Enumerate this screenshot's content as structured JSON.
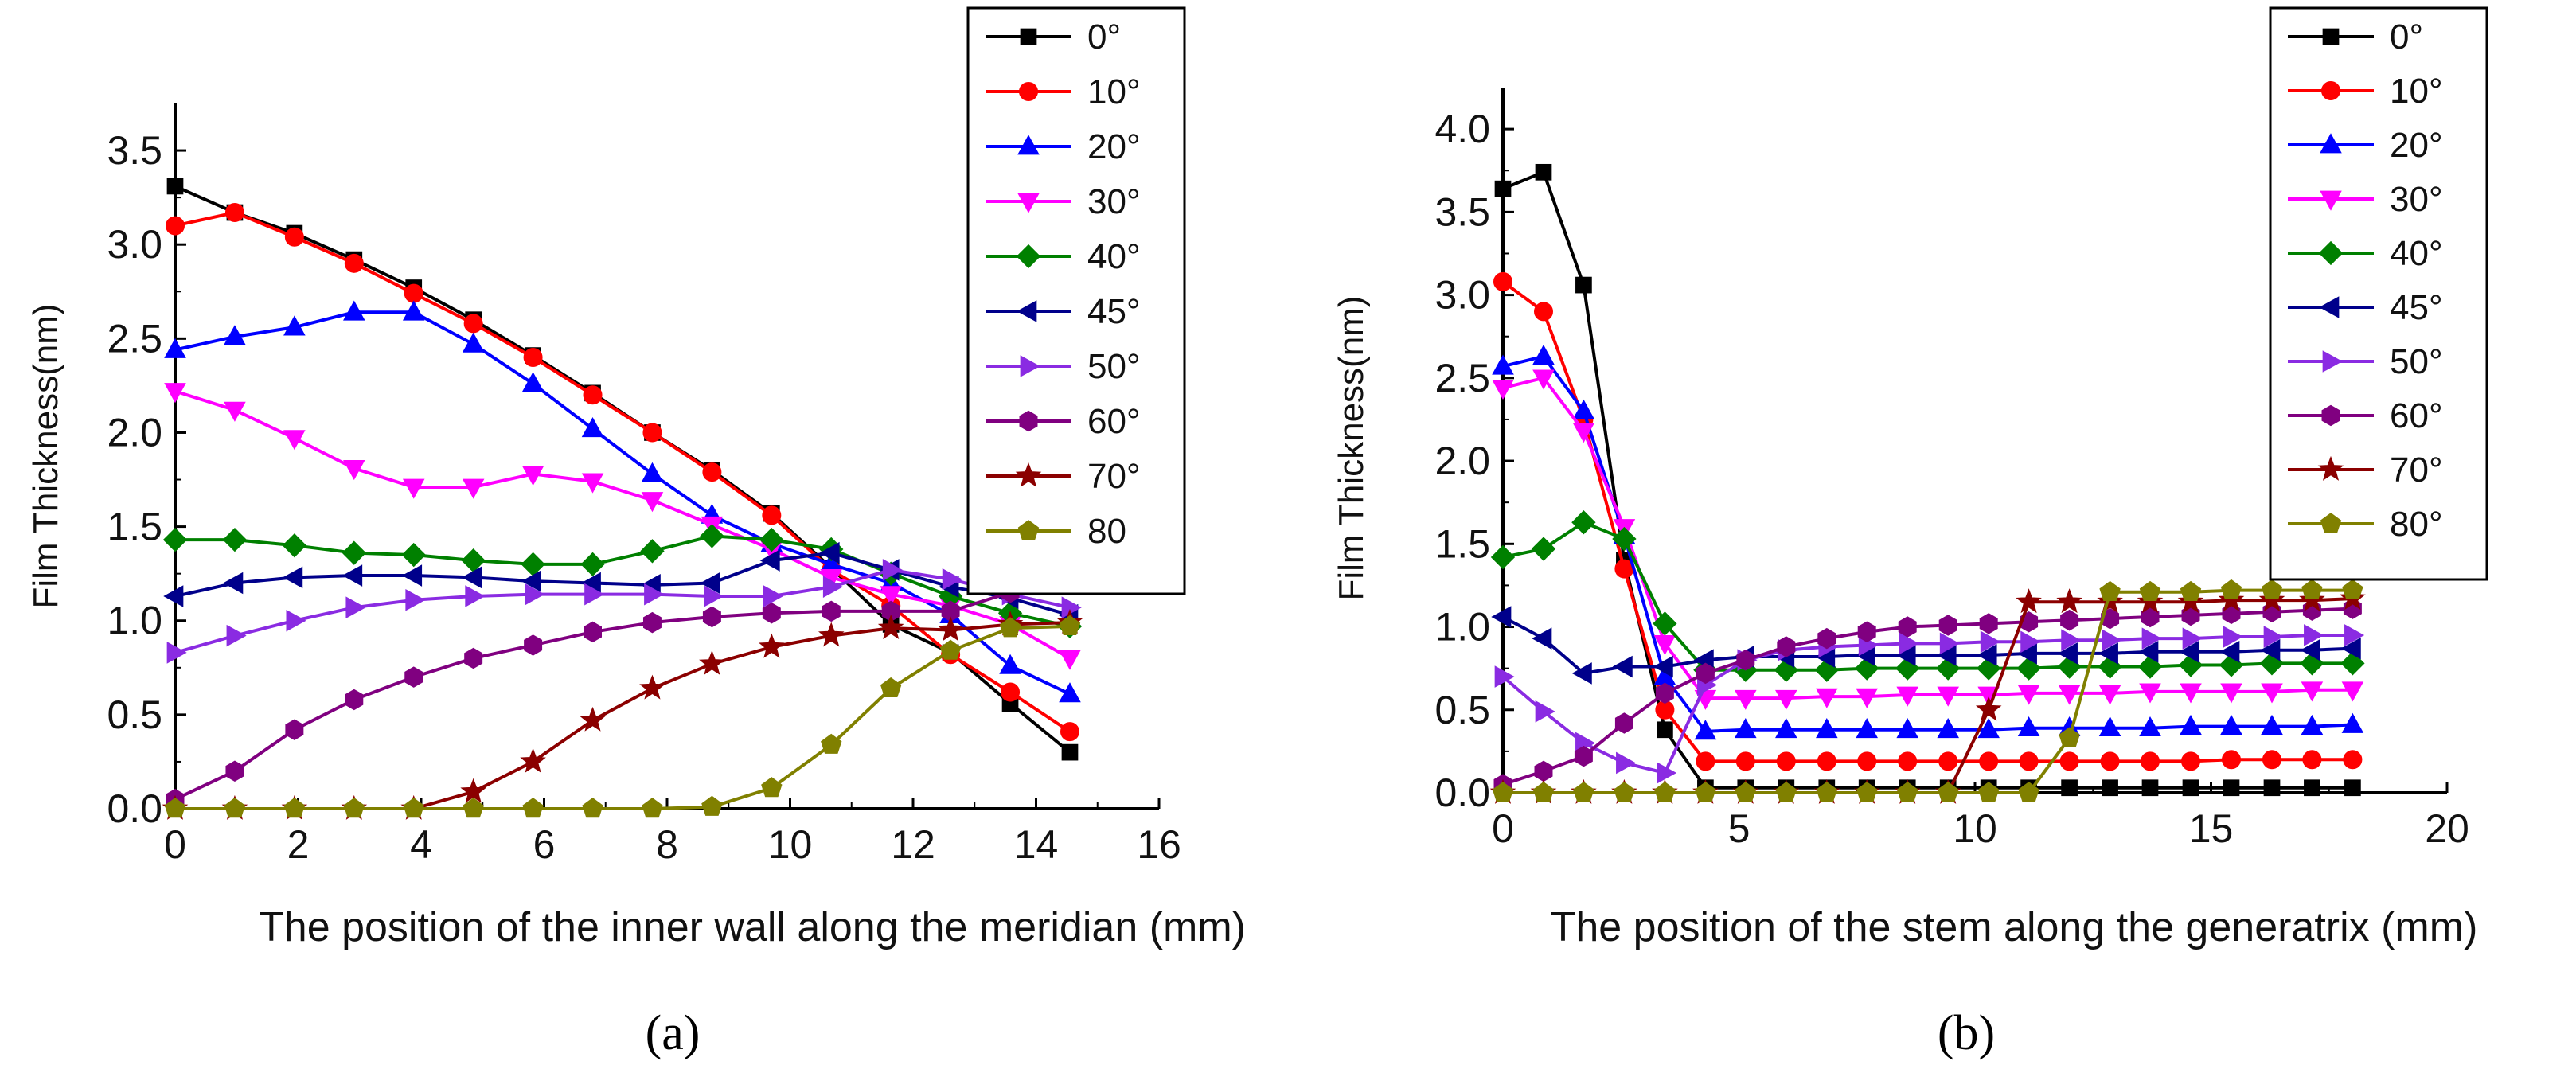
{
  "chart_data": [
    {
      "panel_label": "(a)",
      "type": "line",
      "ylabel": "Film Thickness(nm)",
      "xlabel": "The position of the inner wall along the meridian (mm)",
      "xlim": [
        0,
        16
      ],
      "ylim": [
        0,
        3.75
      ],
      "xticks": [
        "0",
        "2",
        "4",
        "6",
        "8",
        "10",
        "12",
        "14",
        "16"
      ],
      "yticks": [
        "0.0",
        "0.5",
        "1.0",
        "1.5",
        "2.0",
        "2.5",
        "3.0",
        "3.5"
      ],
      "legend_position": "top-right",
      "x": [
        0,
        0.97,
        1.94,
        2.91,
        3.88,
        4.85,
        5.82,
        6.79,
        7.76,
        8.73,
        9.7,
        10.67,
        11.64,
        12.61,
        13.58,
        14.55
      ],
      "series": [
        {
          "name": "0°",
          "color": "#000000",
          "marker": "square",
          "values": [
            3.31,
            3.17,
            3.06,
            2.92,
            2.77,
            2.6,
            2.41,
            2.21,
            2.0,
            1.8,
            1.57,
            1.28,
            0.98,
            0.83,
            0.56,
            0.3
          ]
        },
        {
          "name": "10°",
          "color": "#ff0000",
          "marker": "circle",
          "values": [
            3.1,
            3.17,
            3.04,
            2.9,
            2.74,
            2.58,
            2.4,
            2.2,
            2.0,
            1.79,
            1.56,
            1.27,
            1.08,
            0.82,
            0.62,
            0.41
          ]
        },
        {
          "name": "20°",
          "color": "#0000ff",
          "marker": "triangle-up",
          "values": [
            2.44,
            2.51,
            2.56,
            2.64,
            2.64,
            2.47,
            2.26,
            2.02,
            1.78,
            1.56,
            1.41,
            1.3,
            1.2,
            1.03,
            0.76,
            0.61
          ]
        },
        {
          "name": "30°",
          "color": "#ff00ff",
          "marker": "triangle-down",
          "values": [
            2.22,
            2.12,
            1.97,
            1.81,
            1.71,
            1.71,
            1.78,
            1.74,
            1.64,
            1.51,
            1.38,
            1.23,
            1.14,
            1.08,
            0.98,
            0.8
          ]
        },
        {
          "name": "40°",
          "color": "#008000",
          "marker": "diamond",
          "values": [
            1.43,
            1.43,
            1.4,
            1.36,
            1.35,
            1.32,
            1.3,
            1.3,
            1.37,
            1.45,
            1.43,
            1.38,
            1.25,
            1.13,
            1.04,
            0.97
          ]
        },
        {
          "name": "45°",
          "color": "#00008b",
          "marker": "triangle-left",
          "values": [
            1.13,
            1.2,
            1.23,
            1.24,
            1.24,
            1.23,
            1.21,
            1.2,
            1.19,
            1.2,
            1.32,
            1.36,
            1.27,
            1.18,
            1.12,
            1.03
          ]
        },
        {
          "name": "50°",
          "color": "#8a2be2",
          "marker": "triangle-right",
          "values": [
            0.83,
            0.92,
            1.0,
            1.07,
            1.11,
            1.13,
            1.14,
            1.14,
            1.14,
            1.13,
            1.13,
            1.18,
            1.27,
            1.22,
            1.14,
            1.07
          ]
        },
        {
          "name": "60°",
          "color": "#800080",
          "marker": "hexagon",
          "values": [
            0.05,
            0.2,
            0.42,
            0.58,
            0.7,
            0.8,
            0.87,
            0.94,
            0.99,
            1.02,
            1.04,
            1.05,
            1.05,
            1.05,
            1.15,
            1.2
          ]
        },
        {
          "name": "70°",
          "color": "#8b0000",
          "marker": "star",
          "values": [
            0.0,
            0.0,
            0.0,
            0.0,
            0.0,
            0.09,
            0.25,
            0.47,
            0.64,
            0.77,
            0.86,
            0.92,
            0.96,
            0.95,
            0.98,
            0.99
          ]
        },
        {
          "name": "80",
          "color": "#808000",
          "marker": "pentagon",
          "values": [
            0.0,
            0.0,
            0.0,
            0.0,
            0.0,
            0.0,
            0.0,
            0.0,
            0.0,
            0.01,
            0.11,
            0.34,
            0.64,
            0.84,
            0.96,
            0.97
          ]
        }
      ]
    },
    {
      "panel_label": "(b)",
      "type": "line",
      "ylabel": "Film Thickness(nm)",
      "xlabel": "The position of the stem along the generatrix (mm)",
      "xlim": [
        0,
        20
      ],
      "ylim": [
        0,
        4.25
      ],
      "xticks": [
        "0",
        "5",
        "10",
        "15",
        "20"
      ],
      "yticks": [
        "0.0",
        "0.5",
        "1.0",
        "1.5",
        "2.0",
        "2.5",
        "3.0",
        "3.5",
        "4.0"
      ],
      "legend_position": "top-right",
      "x": [
        0,
        0.86,
        1.71,
        2.57,
        3.43,
        4.29,
        5.14,
        6.0,
        6.86,
        7.71,
        8.57,
        9.43,
        10.29,
        11.14,
        12.0,
        12.86,
        13.71,
        14.57,
        15.43,
        16.29,
        17.14,
        18.0
      ],
      "series": [
        {
          "name": "0°",
          "color": "#000000",
          "marker": "square",
          "values": [
            3.64,
            3.74,
            3.06,
            1.4,
            0.38,
            0.03,
            0.03,
            0.03,
            0.03,
            0.03,
            0.03,
            0.03,
            0.03,
            0.03,
            0.03,
            0.03,
            0.03,
            0.03,
            0.03,
            0.03,
            0.03,
            0.03
          ]
        },
        {
          "name": "10°",
          "color": "#ff0000",
          "marker": "circle",
          "values": [
            3.08,
            2.9,
            2.25,
            1.35,
            0.5,
            0.19,
            0.19,
            0.19,
            0.19,
            0.19,
            0.19,
            0.19,
            0.19,
            0.19,
            0.19,
            0.19,
            0.19,
            0.19,
            0.2,
            0.2,
            0.2,
            0.2
          ]
        },
        {
          "name": "20°",
          "color": "#0000ff",
          "marker": "triangle-up",
          "values": [
            2.57,
            2.63,
            2.3,
            1.55,
            0.7,
            0.37,
            0.38,
            0.38,
            0.38,
            0.38,
            0.38,
            0.38,
            0.38,
            0.39,
            0.39,
            0.39,
            0.39,
            0.4,
            0.4,
            0.4,
            0.4,
            0.41
          ]
        },
        {
          "name": "30°",
          "color": "#ff00ff",
          "marker": "triangle-down",
          "values": [
            2.44,
            2.5,
            2.18,
            1.6,
            0.9,
            0.57,
            0.57,
            0.57,
            0.58,
            0.58,
            0.59,
            0.59,
            0.59,
            0.6,
            0.6,
            0.6,
            0.61,
            0.61,
            0.61,
            0.61,
            0.62,
            0.62
          ]
        },
        {
          "name": "40°",
          "color": "#008000",
          "marker": "diamond",
          "values": [
            1.42,
            1.47,
            1.63,
            1.53,
            1.02,
            0.74,
            0.74,
            0.74,
            0.74,
            0.75,
            0.75,
            0.75,
            0.75,
            0.75,
            0.76,
            0.76,
            0.76,
            0.77,
            0.77,
            0.78,
            0.78,
            0.78
          ]
        },
        {
          "name": "45°",
          "color": "#00008b",
          "marker": "triangle-left",
          "values": [
            1.06,
            0.93,
            0.72,
            0.76,
            0.76,
            0.8,
            0.82,
            0.82,
            0.82,
            0.83,
            0.83,
            0.83,
            0.83,
            0.84,
            0.84,
            0.84,
            0.85,
            0.85,
            0.85,
            0.86,
            0.86,
            0.87
          ]
        },
        {
          "name": "50°",
          "color": "#8a2be2",
          "marker": "triangle-right",
          "values": [
            0.7,
            0.49,
            0.3,
            0.18,
            0.12,
            0.65,
            0.8,
            0.86,
            0.88,
            0.89,
            0.9,
            0.9,
            0.91,
            0.91,
            0.92,
            0.92,
            0.93,
            0.93,
            0.94,
            0.94,
            0.95,
            0.95
          ]
        },
        {
          "name": "60°",
          "color": "#800080",
          "marker": "hexagon",
          "values": [
            0.05,
            0.13,
            0.22,
            0.42,
            0.6,
            0.72,
            0.8,
            0.88,
            0.93,
            0.97,
            1.0,
            1.01,
            1.02,
            1.03,
            1.04,
            1.05,
            1.06,
            1.07,
            1.08,
            1.09,
            1.1,
            1.11
          ]
        },
        {
          "name": "70°",
          "color": "#8b0000",
          "marker": "star",
          "values": [
            0.0,
            0.0,
            0.0,
            0.0,
            0.0,
            0.0,
            0.0,
            0.0,
            0.0,
            0.0,
            0.0,
            0.0,
            0.5,
            1.15,
            1.15,
            1.15,
            1.15,
            1.15,
            1.16,
            1.16,
            1.16,
            1.17
          ]
        },
        {
          "name": "80°",
          "color": "#808000",
          "marker": "pentagon",
          "values": [
            0.0,
            0.0,
            0.0,
            0.0,
            0.0,
            0.0,
            0.0,
            0.0,
            0.0,
            0.0,
            0.0,
            0.0,
            0.0,
            0.0,
            0.33,
            1.21,
            1.21,
            1.21,
            1.22,
            1.22,
            1.22,
            1.22
          ]
        }
      ]
    }
  ]
}
